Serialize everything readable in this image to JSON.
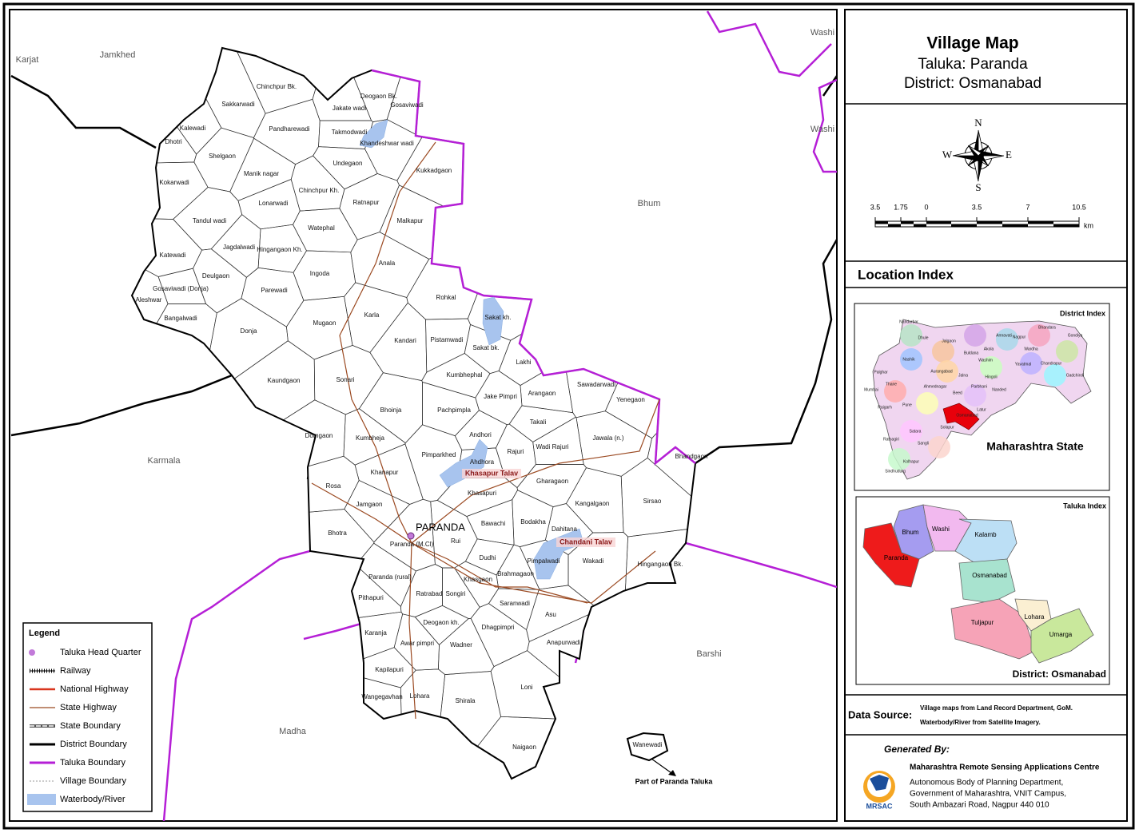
{
  "header": {
    "title": "Village Map",
    "taluka": "Taluka: Paranda",
    "district": "District: Osmanabad"
  },
  "compass": {
    "n": "N",
    "s": "S",
    "e": "E",
    "w": "W"
  },
  "scale_bar": {
    "labels": [
      "3.5",
      "1.75",
      "0",
      "3.5",
      "7",
      "10.5"
    ],
    "unit": "km"
  },
  "map": {
    "neighbors": [
      "Jamkhed",
      "Karjat",
      "Washi",
      "Washi",
      "Bhum",
      "Karmala",
      "Barshi",
      "Madha"
    ],
    "hq": "PARANDA",
    "waterbodies": [
      "Khasapur Talav",
      "Chandani Talav"
    ],
    "inset_note": "Part of Paranda Taluka",
    "villages": [
      "Chinchpur Bk.",
      "Sakkarwadi",
      "Jakate wadi",
      "Deogaon Bk.",
      "Gosaviwadi",
      "Kalewadi",
      "Pandharewadi",
      "Takmodwadi",
      "Khandeshwar wadi",
      "Dhotri",
      "Shelgaon",
      "Manik nagar",
      "Undegaon",
      "Kukkadgaon",
      "Kokarwadi",
      "Chinchpur Kh.",
      "Lonarwadi",
      "Ratnapur",
      "Malkapur",
      "Tandul wadi",
      "Watephal",
      "Jagdalwadi",
      "Hingangaon Kh.",
      "Katewadi",
      "Anala",
      "Deulgaon",
      "Ingoda",
      "Gosaviwadi (Donja)",
      "Parewadi",
      "Aleshwar",
      "Rohkal",
      "Mugaon",
      "Karla",
      "Sakat kh.",
      "Bangalwadi",
      "Donja",
      "Kandari",
      "Pistamwadi",
      "Sakat bk.",
      "Lakhi",
      "Kaundgaon",
      "Sonari",
      "Kumbhephal",
      "Sawadarwadi",
      "Arangaon",
      "Jake Pimpri",
      "Yenegaon",
      "Bhoinja",
      "Pachpimpla",
      "Takali",
      "Andhori",
      "Domgaon",
      "Kumbheja",
      "Jawala (n.)",
      "Rajuri",
      "Wadi Rajuri",
      "Pimparkhed",
      "Ahdhora",
      "Bhandgaon",
      "Khanapur",
      "Rosa",
      "Gharagaon",
      "Khasapuri",
      "Sirsao",
      "Kangalgaon",
      "Jamgaon",
      "Bodakha",
      "Bawachi",
      "Dahitana",
      "Bhotra",
      "Rui",
      "Paranda (M.Cl)",
      "Dudhi",
      "Pimpalwadi",
      "Wakadi",
      "Hingangaon Bk.",
      "Brahmagaon",
      "Paranda (rural)",
      "Khasgaon",
      "Ratrabad",
      "Songiri",
      "Pithapuri",
      "Saranwadi",
      "Asu",
      "Deogaon kh.",
      "Karanja",
      "Dhagpimpri",
      "Awar pimpri",
      "Wadner",
      "Anapurwadi",
      "Kapilapuri",
      "Loni",
      "Lohara",
      "Wangegavhan",
      "Shirala",
      "Naigaon",
      "Wanewadi"
    ]
  },
  "legend": {
    "title": "Legend",
    "items": [
      "Taluka Head Quarter",
      "Railway",
      "National Highway",
      "State Highway",
      "State Boundary",
      "District Boundary",
      "Taluka Boundary",
      "Village Boundary",
      "Waterbody/River"
    ]
  },
  "location_index": {
    "title": "Location Index",
    "district_index": {
      "title": "District Index",
      "state": "Maharashtra State",
      "districts": [
        "Nandurbar",
        "Dhule",
        "Jalgaon",
        "Buldana",
        "Akola",
        "Amravati",
        "Nagpur",
        "Bhandara",
        "Gondiya",
        "Wardha",
        "Nashik",
        "Aurangabad",
        "Jalna",
        "Washim",
        "Yavatmal",
        "Chandrapur",
        "Gadchiroli",
        "Palghar",
        "Thane",
        "Mumbai",
        "Raigarh",
        "Ahmednagar",
        "Beed",
        "Hingoli",
        "Parbhani",
        "Nanded",
        "Latur",
        "Pune",
        "Osmanabad",
        "Satara",
        "Solapur",
        "Ratnagiri",
        "Sangli",
        "Kolhapur",
        "Sindhudurg"
      ]
    },
    "taluka_index": {
      "title": "Taluka Index",
      "district": "District: Osmanabad",
      "talukas": [
        "Bhum",
        "Washi",
        "Kalamb",
        "Paranda",
        "Osmanabad",
        "Tuljapur",
        "Lohara",
        "Umarga"
      ]
    }
  },
  "data_source": {
    "label": "Data Source:",
    "lines": [
      "Village maps from Land Record Department, GoM.",
      "Waterbody/River from Satellite Imagery."
    ]
  },
  "generated_by": {
    "label": "Generated By:",
    "logo": "MRSAC",
    "org": "Maharashtra Remote Sensing Applications Centre",
    "address": [
      "Autonomous Body of Planning Department,",
      "Government of Maharashtra, VNIT Campus,",
      "South Ambazari Road, Nagpur 440 010"
    ]
  }
}
